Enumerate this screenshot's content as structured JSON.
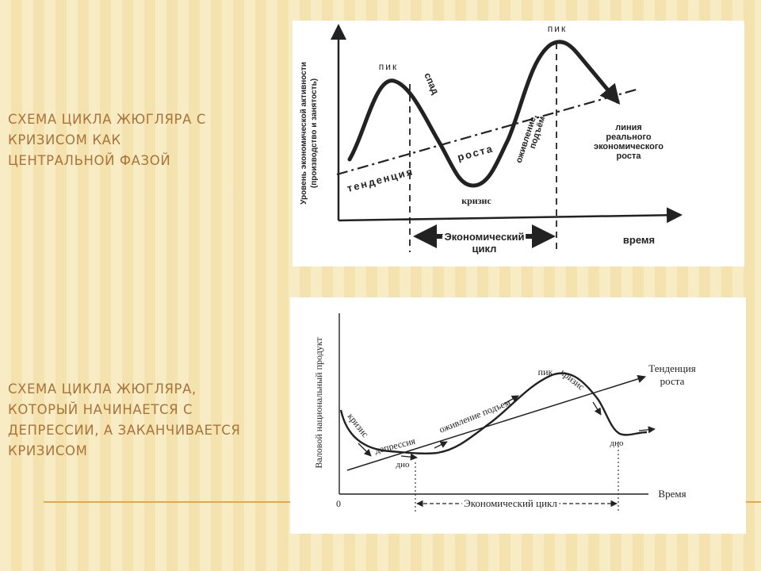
{
  "slide": {
    "heading_1": [
      "Схема цикла Жюгляра с",
      "кризисом как",
      "центральной фазой"
    ],
    "heading_2": [
      "Схема цикла Жюгляра,",
      "который начинается с",
      "депрессии, а заканчивается",
      "кризисом"
    ]
  },
  "diagram_top": {
    "y_axis_label_1": "Уровень экономической активности",
    "y_axis_label_2": "(производство и занятость)",
    "x_axis_label": "время",
    "peak_left": "пик",
    "peak_right": "пик",
    "decline": "спад",
    "crisis": "кризис",
    "trend_1": "тенденция",
    "trend_2": "роста",
    "recovery_1": "оживление,",
    "recovery_2": "подъём",
    "real_growth_1": "линия",
    "real_growth_2": "реального",
    "real_growth_3": "экономического",
    "real_growth_4": "роста",
    "cycle_1": "Экономический",
    "cycle_2": "цикл"
  },
  "diagram_bottom": {
    "y_axis_label": "Валовой национальный продукт",
    "x_axis_label": "Время",
    "origin": "0",
    "crisis_left": "кризис",
    "depression": "депрессия",
    "recovery_boom": "оживление подъем",
    "peak": "пик",
    "crisis_right": "кризис",
    "bottom_left": "дно",
    "bottom_right": "дно",
    "trend_1": "Тенденция",
    "trend_2": "роста",
    "cycle": "Экономический цикл"
  },
  "colors": {
    "background": "#f7e7b5",
    "heading": "#a9733b",
    "rule": "#e0a94c",
    "panel": "#ffffff",
    "ink": "#222222"
  }
}
